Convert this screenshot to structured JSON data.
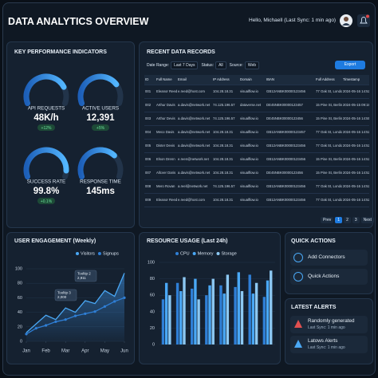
{
  "header": {
    "title": "DATA ANALYTICS OVERVIEW",
    "greeting": "Hello, Michaell (Last Sync: 1 min ago)"
  },
  "kpi_panel": {
    "title": "KEY PERFORMANCE INDICATORS",
    "kpis": [
      {
        "label": "API REQUESTS",
        "value": "48K/h",
        "change": "+12%",
        "level": 78
      },
      {
        "label": "ACTIVE USERS",
        "value": "12,391",
        "change": "+5%",
        "level": 74
      },
      {
        "label": "SUCCESS RATE",
        "value": "99.8%",
        "change": "+0.1%",
        "level": 92
      },
      {
        "label": "RESPONSE TIME",
        "value": "145ms",
        "level": 70
      }
    ]
  },
  "records": {
    "title": "RECENT DATA RECORDS",
    "filters": [
      {
        "label": "Date Range:",
        "value": "Last 7 Days"
      },
      {
        "label": "Status:",
        "value": "All"
      },
      {
        "label": "Source:",
        "value": "Web"
      }
    ],
    "export": "Export",
    "columns": [
      "ID",
      "Full Name",
      "Email",
      "IP Address",
      "Domain",
      "IBAN",
      "Full Address",
      "Timestamp"
    ],
    "rows": [
      [
        "001",
        "Eleanor Reed",
        "e.reed@host.com",
        "104.28.18.31",
        "visualflow.io",
        "GB12ANBK00000123456",
        "77 Oak St, London W1",
        "2024-05-16 14:52"
      ],
      [
        "002",
        "Arthur Davis",
        "a.davis@network.net",
        "74.125.196.57",
        "dataverse.net",
        "DE45NBK00000123457",
        "15 Pine St, Berlin 10",
        "2024-05-15 09:18"
      ],
      [
        "003",
        "Arthur Devis",
        "a.davis@network.net",
        "74.125.196.57",
        "visualflow.io",
        "DE45NBK00000123456",
        "15 Pine St, Berlin 10",
        "2024-05-16 14:55"
      ],
      [
        "004",
        "Meco Davis",
        "a.davis@network.net",
        "104.28.18.31",
        "visualflow.io",
        "GB12ANBK00000123457",
        "77 Oak St, London W1",
        "2024-05-16 14:52"
      ],
      [
        "005",
        "Dister Devis",
        "a.davis@network.net",
        "104.28.18.31",
        "visualflow.io",
        "GB12ANBK00000123456",
        "77 Oak St, London W1",
        "2024-05-16 14:52"
      ],
      [
        "006",
        "Elson Drenn",
        "e.reen@network.net",
        "104.28.18.31",
        "visualflow.io",
        "GB12ANBK00000123456",
        "15 Pine St, Berlin 10",
        "2024-05-16 14:52"
      ],
      [
        "007",
        "Allcver Daris",
        "a.davis@network.net",
        "104.28.18.31",
        "visualflow.io",
        "DE45NBK00000123456",
        "15 Pine St, Berlin 10",
        "2024-05-16 14:52"
      ],
      [
        "008",
        "Mero Rovan",
        "a.reel@network.net",
        "74.125.196.57",
        "visualflow.io",
        "GB12ANBK00000123456",
        "77 Oak St, London W1",
        "2024-05-16 14:52"
      ],
      [
        "009",
        "Eleanor Reed",
        "e.reed@host.com",
        "104.28.18.31",
        "visualflow.io",
        "GB12ANBK00000123456",
        "77 Oak St, London W1",
        "2024-05-16 14:52"
      ]
    ],
    "pagination": [
      "Prev",
      "1",
      "2",
      "3",
      "Next"
    ]
  },
  "engagement": {
    "type": "line",
    "title": "USER ENGAGEMENT (Weekly)",
    "x": [
      0,
      0.5,
      1,
      1.5,
      2,
      2.5,
      3,
      3.5,
      4,
      4.5,
      5
    ],
    "xlim": [
      0,
      5
    ],
    "xticks": [
      {
        "value": 0,
        "label": "Jan"
      },
      {
        "value": 1,
        "label": "Feb"
      },
      {
        "value": 2,
        "label": "Mar"
      },
      {
        "value": 3,
        "label": "Apr"
      },
      {
        "value": 4,
        "label": "May"
      },
      {
        "value": 5,
        "label": "Jun"
      }
    ],
    "ylim": [
      0,
      100
    ],
    "yticks": [
      0,
      20,
      40,
      60,
      80,
      100
    ],
    "series": [
      {
        "name": "Visitors",
        "color": "#4aa8f5",
        "values": [
          12,
          24,
          36,
          30,
          46,
          40,
          56,
          52,
          70,
          62,
          94
        ]
      },
      {
        "name": "Signups",
        "color": "#2f7fd6",
        "values": [
          10,
          18,
          22,
          27,
          30,
          35,
          38,
          41,
          48,
          55,
          60
        ]
      }
    ],
    "annotations": [
      {
        "title": "Tooltip 2",
        "text": "2,911"
      },
      {
        "title": "Tooltip 3",
        "text": "2,000"
      }
    ]
  },
  "resource": {
    "type": "bar",
    "title": "RESOURCE USAGE (Last 24h)",
    "categories": [
      null,
      null,
      null,
      null,
      null,
      null,
      null,
      null
    ],
    "ylim": [
      0,
      100
    ],
    "yticks": [
      0,
      20,
      40,
      60,
      80,
      100
    ],
    "series": [
      {
        "name": "CPU",
        "color": "#2f7fd6",
        "values": [
          55,
          75,
          68,
          60,
          72,
          70,
          85,
          58
        ]
      },
      {
        "name": "Memory",
        "color": "#4aa8f5",
        "values": [
          75,
          65,
          80,
          72,
          62,
          88,
          62,
          78
        ]
      },
      {
        "name": "Storage",
        "color": "#8cc8f2",
        "values": [
          60,
          82,
          55,
          80,
          85,
          65,
          75,
          90
        ]
      }
    ]
  },
  "quick_actions": {
    "title": "QUICK ACTIONS",
    "items": [
      "Add Connectors",
      "Quick Actions"
    ]
  },
  "alerts": {
    "title": "LATEST ALERTS",
    "items": [
      {
        "title": "Randomly generated",
        "time": "Last Sync: 1 min ago"
      },
      {
        "title": "Latows Alerts",
        "time": "Last Sync: 1 min ago"
      }
    ]
  }
}
